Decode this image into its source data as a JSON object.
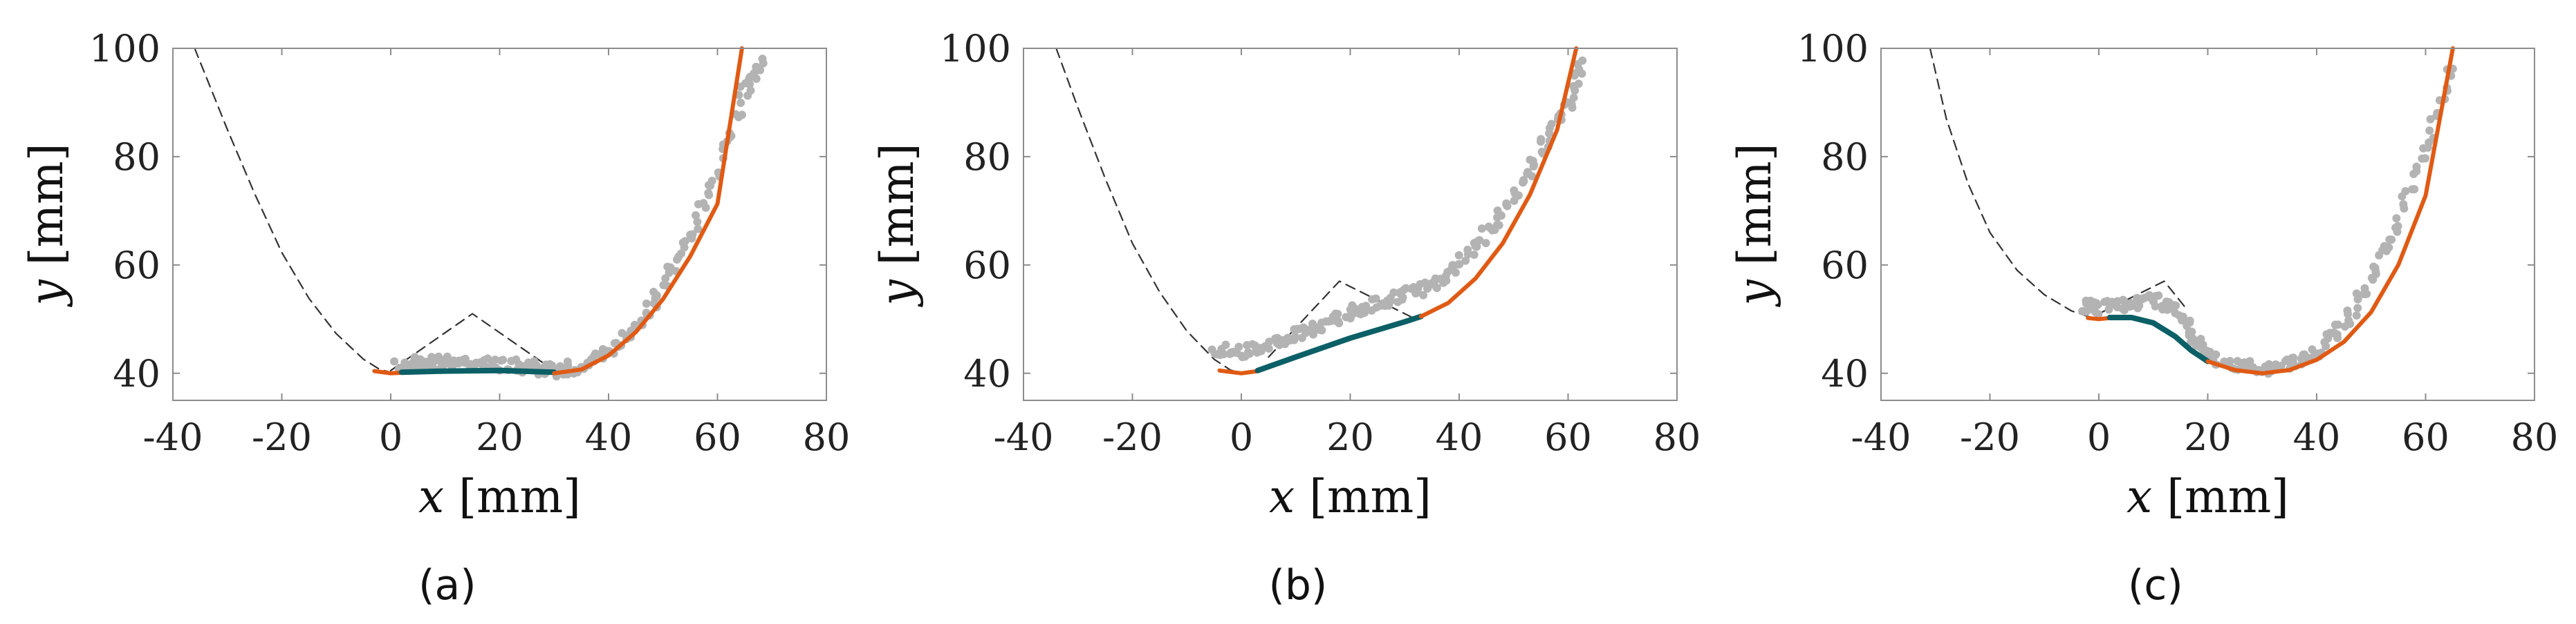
{
  "colors": {
    "scatter": "#b3b3b3",
    "model_orange": "#e05a14",
    "model_teal": "#0b5f66",
    "reference": "#333333",
    "axes": "#8c8c8c"
  },
  "chart_data": [
    {
      "type": "line",
      "caption": "(a)",
      "xlabel": {
        "var": "x",
        "unit": "[mm]"
      },
      "ylabel": {
        "var": "y",
        "unit": "[mm]"
      },
      "xlim": [
        -40,
        80
      ],
      "ylim": [
        35,
        100
      ],
      "xticks": [
        "-40",
        "-20",
        "0",
        "20",
        "40",
        "60",
        "80"
      ],
      "yticks": [
        "40",
        "60",
        "80",
        "100"
      ],
      "series": [
        {
          "name": "reference parabola",
          "style": "dashed",
          "x": [
            -36,
            -30,
            -25,
            -20,
            -15,
            -10,
            -5,
            -2,
            0
          ],
          "y": [
            100,
            85,
            73.2,
            62.3,
            53.8,
            47.3,
            42.6,
            40.7,
            40.2
          ]
        },
        {
          "name": "reference peak",
          "style": "dashed",
          "x": [
            0,
            15,
            30
          ],
          "y": [
            40.5,
            51,
            40.5
          ]
        },
        {
          "name": "measured points",
          "style": "scatter",
          "x": [
            1,
            5,
            10,
            15,
            20,
            25,
            30,
            35,
            40,
            45,
            50,
            55,
            60,
            65,
            68
          ],
          "y": [
            41.5,
            41.8,
            42,
            41.7,
            41.5,
            41.2,
            40.5,
            41.5,
            44,
            48.5,
            56,
            65,
            77,
            92,
            98
          ]
        },
        {
          "name": "fitted curve (bottom)",
          "style": "orange",
          "x": [
            -3,
            0,
            2
          ],
          "y": [
            40.4,
            40,
            40.1
          ]
        },
        {
          "name": "fitted curve (plateau)",
          "style": "teal",
          "x": [
            2,
            10,
            20,
            30
          ],
          "y": [
            40.2,
            40.4,
            40.5,
            40.2
          ]
        },
        {
          "name": "fitted curve (rise)",
          "style": "orange",
          "x": [
            30,
            35,
            40,
            45,
            50,
            55,
            60,
            64.5
          ],
          "y": [
            40,
            40.7,
            43.3,
            47.6,
            53.7,
            61.6,
            71.3,
            100
          ]
        }
      ]
    },
    {
      "type": "line",
      "caption": "(b)",
      "xlabel": {
        "var": "x",
        "unit": "[mm]"
      },
      "ylabel": {
        "var": "y",
        "unit": "[mm]"
      },
      "xlim": [
        -40,
        80
      ],
      "ylim": [
        35,
        100
      ],
      "xticks": [
        "-40",
        "-20",
        "0",
        "20",
        "40",
        "60",
        "80"
      ],
      "yticks": [
        "40",
        "60",
        "80",
        "100"
      ],
      "series": [
        {
          "name": "reference parabola",
          "style": "dashed",
          "x": [
            -34,
            -30,
            -25,
            -20,
            -15,
            -10,
            -5,
            -2,
            0
          ],
          "y": [
            100,
            89,
            76,
            64,
            55,
            47.8,
            42.6,
            40.6,
            40
          ]
        },
        {
          "name": "reference peak",
          "style": "dashed",
          "x": [
            5,
            18,
            32
          ],
          "y": [
            43,
            57,
            50
          ]
        },
        {
          "name": "measured points",
          "style": "scatter",
          "x": [
            -5,
            0,
            5,
            10,
            15,
            20,
            25,
            30,
            35,
            40,
            45,
            50,
            55,
            60,
            63
          ],
          "y": [
            44.5,
            44,
            45.5,
            47,
            49,
            51,
            53,
            54.5,
            56,
            60,
            66,
            73,
            81,
            90,
            98
          ]
        },
        {
          "name": "fitted curve (bottom)",
          "style": "orange",
          "x": [
            -4,
            0,
            3
          ],
          "y": [
            40.5,
            40,
            40.4
          ]
        },
        {
          "name": "fitted curve (middle)",
          "style": "teal",
          "x": [
            3,
            10,
            20,
            30,
            33
          ],
          "y": [
            40.5,
            43,
            46.5,
            49.5,
            50.5
          ]
        },
        {
          "name": "fitted curve (rise)",
          "style": "orange",
          "x": [
            33,
            38,
            43,
            48,
            53,
            58,
            61.5
          ],
          "y": [
            50.5,
            53,
            57.5,
            64,
            73,
            85,
            100
          ]
        }
      ]
    },
    {
      "type": "line",
      "caption": "(c)",
      "xlabel": {
        "var": "x",
        "unit": "[mm]"
      },
      "ylabel": {
        "var": "y",
        "unit": "[mm]"
      },
      "xlim": [
        -40,
        80
      ],
      "ylim": [
        35,
        100
      ],
      "xticks": [
        "-40",
        "-20",
        "0",
        "20",
        "40",
        "60",
        "80"
      ],
      "yticks": [
        "40",
        "60",
        "80",
        "100"
      ],
      "series": [
        {
          "name": "reference parabola",
          "style": "dashed",
          "x": [
            -31,
            -28,
            -24,
            -20,
            -15,
            -10,
            -5,
            -2,
            0
          ],
          "y": [
            100,
            87,
            75,
            66,
            59,
            54.5,
            51.5,
            50.5,
            50
          ]
        },
        {
          "name": "reference peak",
          "style": "dashed",
          "x": [
            0,
            12,
            16
          ],
          "y": [
            51,
            57,
            52
          ]
        },
        {
          "name": "measured points",
          "style": "scatter",
          "x": [
            -3,
            0,
            5,
            10,
            14,
            18,
            20,
            25,
            30,
            35,
            40,
            45,
            50,
            55,
            60,
            65
          ],
          "y": [
            52.5,
            52,
            53,
            53.5,
            52,
            46,
            43,
            41.5,
            41,
            41.5,
            44,
            49,
            57,
            68,
            82,
            98
          ]
        },
        {
          "name": "fitted curve (upper)",
          "style": "orange",
          "x": [
            -2,
            0,
            2
          ],
          "y": [
            50.2,
            50,
            50.2
          ]
        },
        {
          "name": "fitted curve (descent)",
          "style": "teal",
          "x": [
            2,
            6,
            10,
            14,
            17,
            20
          ],
          "y": [
            50.3,
            50.3,
            49.3,
            46.8,
            44.2,
            42.2
          ]
        },
        {
          "name": "fitted curve (valley and rise)",
          "style": "orange",
          "x": [
            20,
            25,
            30,
            35,
            40,
            45,
            50,
            55,
            60,
            65
          ],
          "y": [
            42.2,
            40.6,
            40,
            40.6,
            42.5,
            45.8,
            51.3,
            60,
            72.8,
            100
          ]
        }
      ]
    }
  ]
}
